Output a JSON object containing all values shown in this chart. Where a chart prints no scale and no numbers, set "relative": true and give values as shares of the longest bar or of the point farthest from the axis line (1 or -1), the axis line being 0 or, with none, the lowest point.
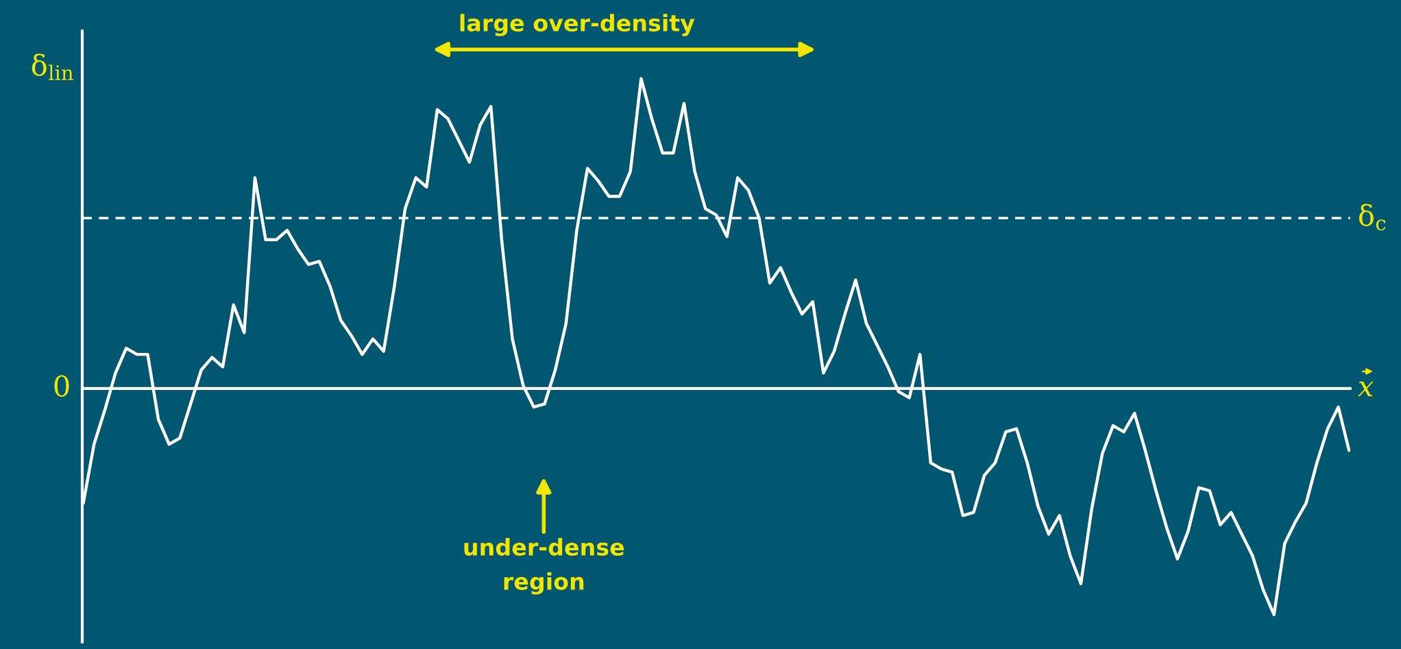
{
  "chart_data": {
    "type": "line",
    "relative": true,
    "ylabel": "δ$_{lin}$",
    "xlabel": "x",
    "legend": false,
    "marker": "none",
    "line_style": "solid",
    "categories": [
      null,
      null,
      null,
      null,
      null,
      null,
      null,
      null,
      null,
      null,
      null,
      null,
      null,
      null,
      null,
      null,
      null,
      null,
      null,
      null,
      null,
      null,
      null,
      null,
      null,
      null,
      null,
      null,
      null,
      null,
      null,
      null,
      null,
      null,
      null,
      null,
      null,
      null,
      null,
      null,
      null,
      null,
      null,
      null,
      null,
      null,
      null,
      null,
      null,
      null,
      null,
      null,
      null,
      null,
      null,
      null,
      null,
      null,
      null,
      null,
      null,
      null,
      null,
      null,
      null,
      null,
      null,
      null,
      null,
      null,
      null,
      null,
      null,
      null,
      null,
      null,
      null,
      null,
      null,
      null,
      null,
      null,
      null,
      null,
      null,
      null,
      null,
      null,
      null,
      null,
      null,
      null,
      null,
      null,
      null,
      null,
      null,
      null,
      null,
      null,
      null,
      null,
      null,
      null,
      null,
      null,
      null,
      null,
      null,
      null,
      null,
      null,
      null,
      null,
      null,
      null,
      null,
      null,
      null
    ],
    "series": [
      {
        "color": "#ffffff",
        "values": [
          -0.37,
          -0.18,
          -0.07,
          0.05,
          0.13,
          0.11,
          0.11,
          -0.1,
          -0.18,
          -0.16,
          -0.05,
          0.06,
          0.1,
          0.07,
          0.27,
          0.18,
          0.68,
          0.48,
          0.48,
          0.51,
          0.45,
          0.4,
          0.41,
          0.33,
          0.22,
          0.17,
          0.11,
          0.16,
          0.12,
          0.33,
          0.58,
          0.68,
          0.65,
          0.9,
          0.87,
          0.8,
          0.73,
          0.85,
          0.91,
          0.48,
          0.16,
          0.01,
          -0.06,
          -0.05,
          0.06,
          0.21,
          0.51,
          0.71,
          0.67,
          0.62,
          0.62,
          0.7,
          1.0,
          0.87,
          0.76,
          0.76,
          0.92,
          0.7,
          0.58,
          0.56,
          0.49,
          0.68,
          0.64,
          0.55,
          0.34,
          0.39,
          0.31,
          0.24,
          0.28,
          0.05,
          0.12,
          0.24,
          0.35,
          0.21,
          0.14,
          0.07,
          -0.01,
          -0.03,
          0.11,
          -0.24,
          -0.26,
          -0.27,
          -0.41,
          -0.4,
          -0.28,
          -0.24,
          -0.14,
          -0.13,
          -0.24,
          -0.38,
          -0.47,
          -0.41,
          -0.54,
          -0.63,
          -0.39,
          -0.21,
          -0.12,
          -0.14,
          -0.08,
          -0.2,
          -0.33,
          -0.45,
          -0.55,
          -0.46,
          -0.32,
          -0.33,
          -0.44,
          -0.4,
          -0.47,
          -0.54,
          -0.65,
          -0.73,
          -0.5,
          -0.43,
          -0.37,
          -0.24,
          -0.13,
          -0.06,
          -0.2
        ]
      }
    ],
    "ref_lines": [
      {
        "axis": "y",
        "value": 0.55,
        "label": "δ$_{c}$",
        "color": "#ffffff",
        "line_style": "dashed"
      }
    ],
    "annotations": [
      "0",
      "large over-density",
      "under-dense\nregion"
    ]
  }
}
